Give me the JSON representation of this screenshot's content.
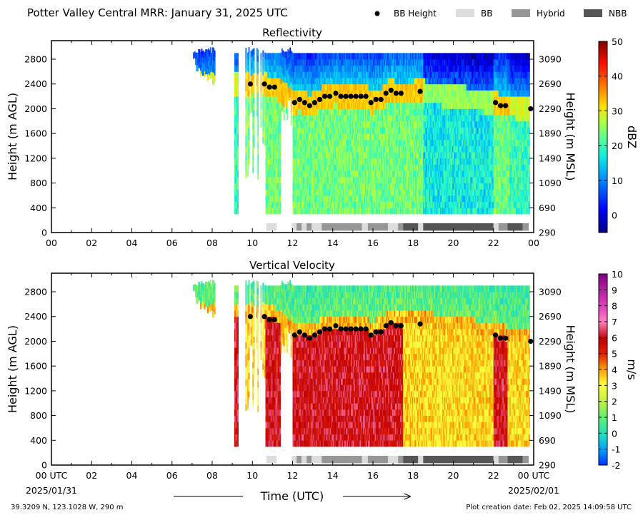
{
  "header": {
    "title": "Potter Valley Central MRR:  January 31, 2025 UTC"
  },
  "legend": {
    "items": [
      {
        "label": "BB Height",
        "kind": "marker",
        "color": "#000000"
      },
      {
        "label": "BB",
        "kind": "swatch",
        "color": "#dcdcdc"
      },
      {
        "label": "Hybrid",
        "kind": "swatch",
        "color": "#969696"
      },
      {
        "label": "NBB",
        "kind": "swatch",
        "color": "#555555"
      }
    ]
  },
  "footer": {
    "location": "39.3209 N, 123.1028 W, 290 m",
    "creation": "Plot creation date: Feb 02, 2025 14:09:58 UTC"
  },
  "chart_data": [
    {
      "type": "heatmap",
      "title": "Reflectivity",
      "xlabel": "",
      "ylabel": "Height (m AGL)",
      "ylabel_right": "Height (m MSL)",
      "xlim": [
        0,
        24
      ],
      "ylim": [
        0,
        3100
      ],
      "x_ticks": [
        "00",
        "02",
        "04",
        "06",
        "08",
        "10",
        "12",
        "14",
        "16",
        "18",
        "20",
        "22",
        "00"
      ],
      "y_ticks": [
        0,
        400,
        800,
        1200,
        1600,
        2000,
        2400,
        2800
      ],
      "y_ticks_right": [
        "290",
        "690",
        "1090",
        "1490",
        "1890",
        "2290",
        "2690",
        "3090"
      ],
      "colorbar": {
        "label": "dBZ",
        "min": -5,
        "max": 50,
        "ticks": [
          0,
          10,
          20,
          30,
          40,
          50
        ]
      }
    },
    {
      "type": "heatmap",
      "title": "Vertical Velocity",
      "xlabel": "Time (UTC)",
      "ylabel": "Height (m AGL)",
      "ylabel_right": "Height (m MSL)",
      "xlim": [
        0,
        24
      ],
      "ylim": [
        0,
        3100
      ],
      "x_ticks": [
        "00 UTC",
        "02",
        "04",
        "06",
        "08",
        "10",
        "12",
        "14",
        "16",
        "18",
        "20",
        "22",
        "00 UTC"
      ],
      "x_dates": {
        "start": "2025/01/31",
        "end": "2025/02/01"
      },
      "y_ticks": [
        0,
        400,
        800,
        1200,
        1600,
        2000,
        2400,
        2800
      ],
      "y_ticks_right": [
        "290",
        "690",
        "1090",
        "1490",
        "1890",
        "2290",
        "2690",
        "3090"
      ],
      "colorbar": {
        "label": "m/s",
        "min": -2,
        "max": 10,
        "ticks": [
          -2,
          -1,
          0,
          1,
          2,
          3,
          4,
          5,
          6,
          7,
          8,
          9,
          10
        ]
      }
    }
  ],
  "bb_height": {
    "x": [
      9.9,
      10.6,
      10.85,
      11.1,
      12.1,
      12.35,
      12.6,
      12.85,
      13.1,
      13.35,
      13.6,
      13.85,
      14.15,
      14.4,
      14.65,
      14.9,
      15.15,
      15.4,
      15.65,
      15.9,
      16.15,
      16.4,
      16.65,
      16.9,
      17.15,
      17.4,
      18.35,
      22.1,
      22.35,
      22.6,
      23.85
    ],
    "y": [
      2400,
      2400,
      2350,
      2350,
      2100,
      2150,
      2100,
      2050,
      2100,
      2150,
      2200,
      2200,
      2250,
      2200,
      2200,
      2200,
      2200,
      2200,
      2200,
      2100,
      2150,
      2150,
      2250,
      2300,
      2250,
      2250,
      2280,
      2100,
      2050,
      2050,
      2000
    ]
  },
  "bb_type_segments": [
    {
      "start": 10.7,
      "end": 11.2,
      "type": "BB"
    },
    {
      "start": 11.95,
      "end": 12.2,
      "type": "BB"
    },
    {
      "start": 12.2,
      "end": 12.45,
      "type": "Hybrid"
    },
    {
      "start": 12.45,
      "end": 12.7,
      "type": "BB"
    },
    {
      "start": 12.7,
      "end": 12.95,
      "type": "Hybrid"
    },
    {
      "start": 12.95,
      "end": 13.45,
      "type": "BB"
    },
    {
      "start": 13.45,
      "end": 15.45,
      "type": "Hybrid"
    },
    {
      "start": 15.45,
      "end": 15.75,
      "type": "BB"
    },
    {
      "start": 15.75,
      "end": 16.75,
      "type": "Hybrid"
    },
    {
      "start": 16.75,
      "end": 17.25,
      "type": "BB"
    },
    {
      "start": 17.25,
      "end": 17.5,
      "type": "Hybrid"
    },
    {
      "start": 17.5,
      "end": 18.25,
      "type": "NBB"
    },
    {
      "start": 18.25,
      "end": 18.5,
      "type": "BB"
    },
    {
      "start": 18.5,
      "end": 22.0,
      "type": "NBB"
    },
    {
      "start": 22.0,
      "end": 22.25,
      "type": "BB"
    },
    {
      "start": 22.25,
      "end": 22.7,
      "type": "Hybrid"
    },
    {
      "start": 22.7,
      "end": 23.45,
      "type": "NBB"
    },
    {
      "start": 23.45,
      "end": 23.75,
      "type": "Hybrid"
    }
  ],
  "colors": {
    "BB": "#dcdcdc",
    "Hybrid": "#969696",
    "NBB": "#555555"
  }
}
